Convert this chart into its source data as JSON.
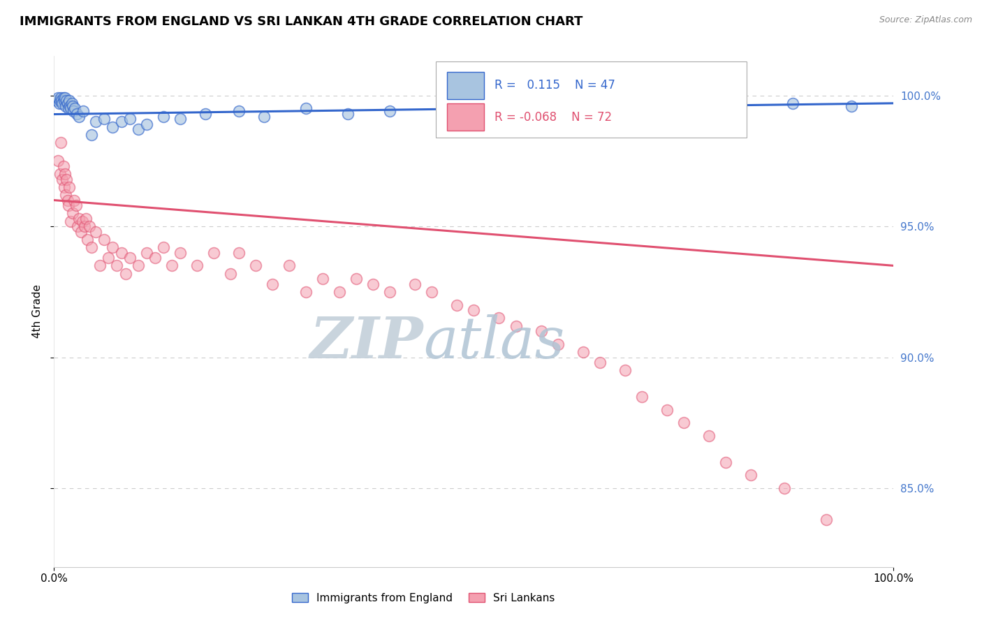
{
  "title": "IMMIGRANTS FROM ENGLAND VS SRI LANKAN 4TH GRADE CORRELATION CHART",
  "source_text": "Source: ZipAtlas.com",
  "ylabel": "4th Grade",
  "legend_label_blue": "Immigrants from England",
  "legend_label_pink": "Sri Lankans",
  "r_blue": 0.115,
  "n_blue": 47,
  "r_pink": -0.068,
  "n_pink": 72,
  "xlim": [
    0.0,
    100.0
  ],
  "ylim": [
    82.0,
    101.5
  ],
  "yticks": [
    85.0,
    90.0,
    95.0,
    100.0
  ],
  "color_blue": "#a8c4e0",
  "color_pink": "#f4a0b0",
  "color_blue_line": "#3366cc",
  "color_pink_line": "#e05070",
  "watermark_zip_color": "#c8d4e0",
  "watermark_atlas_color": "#b0c8d8",
  "background_color": "#ffffff",
  "blue_x": [
    0.3,
    0.5,
    0.6,
    0.7,
    0.8,
    0.9,
    1.0,
    1.1,
    1.2,
    1.3,
    1.4,
    1.5,
    1.6,
    1.7,
    1.8,
    1.9,
    2.0,
    2.1,
    2.2,
    2.3,
    2.5,
    2.7,
    3.0,
    3.5,
    4.5,
    5.0,
    6.0,
    7.0,
    8.0,
    9.0,
    10.0,
    11.0,
    13.0,
    15.0,
    18.0,
    22.0,
    25.0,
    30.0,
    35.0,
    40.0,
    47.0,
    55.0,
    62.0,
    70.0,
    80.0,
    88.0,
    95.0
  ],
  "blue_y": [
    99.8,
    99.9,
    99.7,
    99.8,
    99.9,
    99.8,
    99.7,
    99.9,
    99.8,
    99.9,
    99.6,
    99.8,
    99.7,
    99.5,
    99.8,
    99.6,
    99.5,
    99.7,
    99.6,
    99.4,
    99.5,
    99.3,
    99.2,
    99.4,
    98.5,
    99.0,
    99.1,
    98.8,
    99.0,
    99.1,
    98.7,
    98.9,
    99.2,
    99.1,
    99.3,
    99.4,
    99.2,
    99.5,
    99.3,
    99.4,
    99.5,
    99.3,
    99.4,
    99.6,
    99.5,
    99.7,
    99.6
  ],
  "pink_x": [
    0.5,
    0.7,
    0.8,
    1.0,
    1.1,
    1.2,
    1.3,
    1.4,
    1.5,
    1.6,
    1.7,
    1.8,
    2.0,
    2.2,
    2.4,
    2.6,
    2.8,
    3.0,
    3.2,
    3.4,
    3.6,
    3.8,
    4.0,
    4.2,
    4.5,
    5.0,
    5.5,
    6.0,
    6.5,
    7.0,
    7.5,
    8.0,
    8.5,
    9.0,
    10.0,
    11.0,
    12.0,
    13.0,
    14.0,
    15.0,
    17.0,
    19.0,
    21.0,
    22.0,
    24.0,
    26.0,
    28.0,
    30.0,
    32.0,
    34.0,
    36.0,
    38.0,
    40.0,
    43.0,
    45.0,
    48.0,
    50.0,
    53.0,
    55.0,
    58.0,
    60.0,
    63.0,
    65.0,
    68.0,
    70.0,
    73.0,
    75.0,
    78.0,
    80.0,
    83.0,
    87.0,
    92.0
  ],
  "pink_y": [
    97.5,
    97.0,
    98.2,
    96.8,
    97.3,
    96.5,
    97.0,
    96.2,
    96.8,
    96.0,
    95.8,
    96.5,
    95.2,
    95.5,
    96.0,
    95.8,
    95.0,
    95.3,
    94.8,
    95.2,
    95.0,
    95.3,
    94.5,
    95.0,
    94.2,
    94.8,
    93.5,
    94.5,
    93.8,
    94.2,
    93.5,
    94.0,
    93.2,
    93.8,
    93.5,
    94.0,
    93.8,
    94.2,
    93.5,
    94.0,
    93.5,
    94.0,
    93.2,
    94.0,
    93.5,
    92.8,
    93.5,
    92.5,
    93.0,
    92.5,
    93.0,
    92.8,
    92.5,
    92.8,
    92.5,
    92.0,
    91.8,
    91.5,
    91.2,
    91.0,
    90.5,
    90.2,
    89.8,
    89.5,
    88.5,
    88.0,
    87.5,
    87.0,
    86.0,
    85.5,
    85.0,
    83.8
  ]
}
